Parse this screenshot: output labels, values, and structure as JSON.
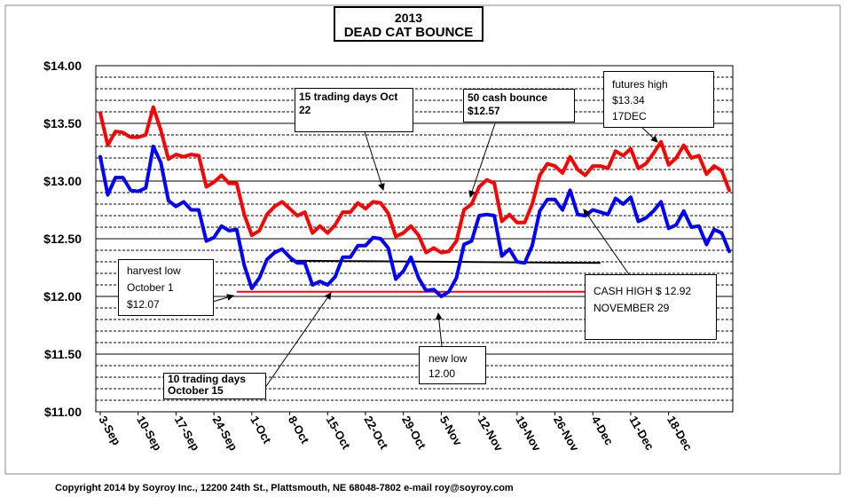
{
  "chart_data": {
    "type": "line",
    "title_year": "2013",
    "title": "DEAD CAT BOUNCE",
    "ylim": [
      11.0,
      14.0
    ],
    "y_ticks": [
      "$11.00",
      "$11.50",
      "$12.00",
      "$12.50",
      "$13.00",
      "$13.50",
      "$14.00"
    ],
    "y_tick_values": [
      11.0,
      11.5,
      12.0,
      12.5,
      13.0,
      13.5,
      14.0
    ],
    "minor_gridline_step": 0.1,
    "x_tick_labels": [
      "3-Sep",
      "10-Sep",
      "17-Sep",
      "24-Sep",
      "1-Oct",
      "8-Oct",
      "15-Oct",
      "22-Oct",
      "29-Oct",
      "5-Nov",
      "12-Nov",
      "19-Nov",
      "26-Nov",
      "4-Dec",
      "11-Dec",
      "18-Dec"
    ],
    "x_tick_index": [
      0,
      5,
      10,
      15,
      20,
      25,
      30,
      35,
      40,
      45,
      50,
      55,
      60,
      65,
      70,
      75
    ],
    "series": [
      {
        "color": "#ff0000",
        "values": [
          13.59,
          13.31,
          13.43,
          13.42,
          13.38,
          13.38,
          13.4,
          13.64,
          13.44,
          13.19,
          13.23,
          13.21,
          13.23,
          13.22,
          12.95,
          12.99,
          13.05,
          12.98,
          12.98,
          12.71,
          12.53,
          12.57,
          12.71,
          12.78,
          12.82,
          12.76,
          12.7,
          12.73,
          12.55,
          12.61,
          12.55,
          12.62,
          12.73,
          12.73,
          12.81,
          12.76,
          12.82,
          12.81,
          12.72,
          12.52,
          12.55,
          12.61,
          12.53,
          12.38,
          12.42,
          12.38,
          12.39,
          12.48,
          12.75,
          12.8,
          12.95,
          13.01,
          12.98,
          12.65,
          12.71,
          12.64,
          12.64,
          12.8,
          13.05,
          13.15,
          13.13,
          13.07,
          13.21,
          13.1,
          13.05,
          13.13,
          13.13,
          13.11,
          13.26,
          13.22,
          13.28,
          13.11,
          13.15,
          13.24,
          13.34,
          13.14,
          13.2,
          13.31,
          13.2,
          13.22,
          13.06,
          13.13,
          13.09,
          12.92
        ]
      },
      {
        "color": "#0000ff",
        "values": [
          13.21,
          12.88,
          13.03,
          13.03,
          12.92,
          12.91,
          12.94,
          13.3,
          13.16,
          12.83,
          12.78,
          12.82,
          12.75,
          12.75,
          12.48,
          12.51,
          12.61,
          12.57,
          12.58,
          12.27,
          12.07,
          12.16,
          12.32,
          12.38,
          12.41,
          12.34,
          12.29,
          12.29,
          12.1,
          12.13,
          12.1,
          12.17,
          12.34,
          12.34,
          12.44,
          12.44,
          12.51,
          12.5,
          12.42,
          12.15,
          12.22,
          12.34,
          12.16,
          12.05,
          12.06,
          12.0,
          12.04,
          12.16,
          12.45,
          12.48,
          12.7,
          12.71,
          12.7,
          12.35,
          12.41,
          12.3,
          12.29,
          12.44,
          12.74,
          12.84,
          12.84,
          12.75,
          12.92,
          12.71,
          12.7,
          12.75,
          12.73,
          12.71,
          12.85,
          12.8,
          12.86,
          12.65,
          12.68,
          12.74,
          12.82,
          12.59,
          12.62,
          12.74,
          12.6,
          12.61,
          12.45,
          12.58,
          12.55,
          12.39
        ]
      }
    ],
    "reference_lines": [
      {
        "color": "#ff0000",
        "x_start": 18,
        "x_end": 66,
        "y_start": 12.04,
        "y_end": 12.04
      },
      {
        "color": "#000000",
        "x_start": 25,
        "x_end": 66,
        "y_start": 12.31,
        "y_end": 12.29
      }
    ]
  },
  "annotations": {
    "fifteen_days": "15 trading days  Oct 22",
    "fifty_cash_line1": "50 cash bounce",
    "fifty_cash_line2": "$12.57",
    "futures_line1": "futures high",
    "futures_line2": "$13.34",
    "futures_line3": "17DEC",
    "harvest_line1": "harvest low",
    "harvest_line2": "October 1",
    "harvest_line3": "$12.07",
    "cash_high_line1": "CASH HIGH  $ 12.92",
    "cash_high_line2": "NOVEMBER 29",
    "new_low_line1": "new low",
    "new_low_line2": "12.00",
    "ten_days_line1": "10 trading days",
    "ten_days_line2": "October 15"
  },
  "footer": {
    "copyright": "Copyright 2014 by Soyroy Inc., 12200 24th St., Plattsmouth, NE 68048-7802 e-mail roy@soyroy.com"
  }
}
